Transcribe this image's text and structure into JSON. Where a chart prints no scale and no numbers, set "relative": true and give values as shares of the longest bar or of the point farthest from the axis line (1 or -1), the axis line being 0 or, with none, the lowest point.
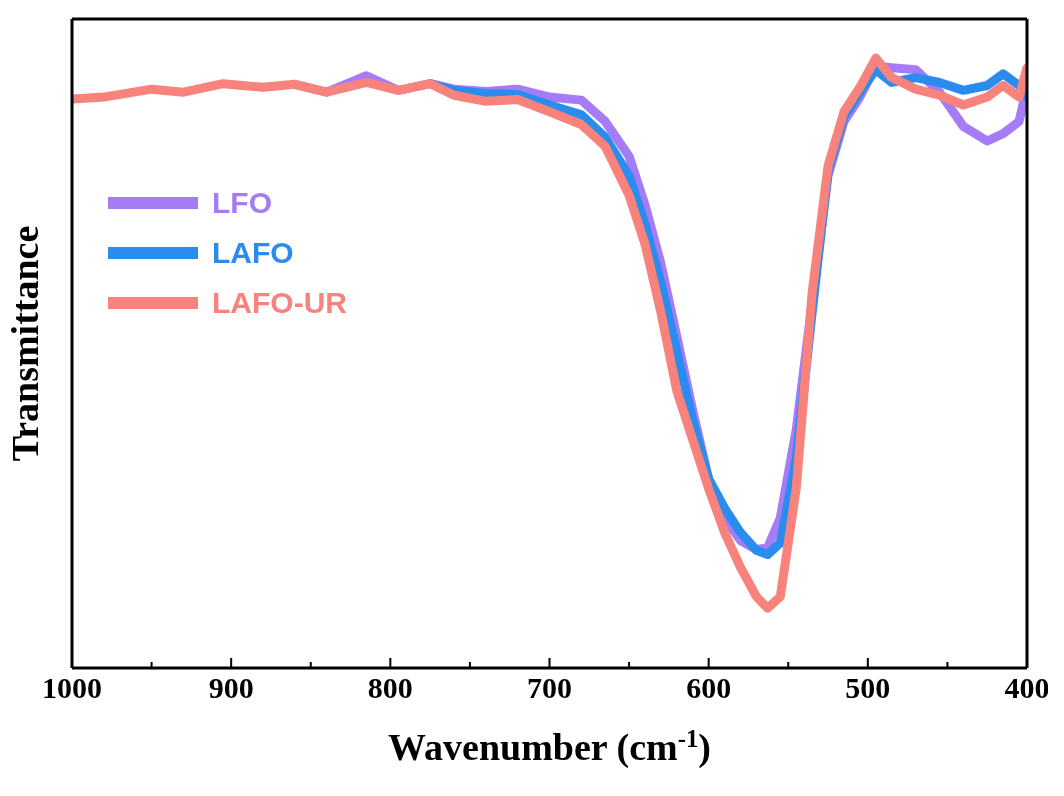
{
  "chart_data": {
    "type": "line",
    "relative": true,
    "xlabel": "Wavenumber (cm$^{-1}$)",
    "ylabel": "Transmittance",
    "x": [
      1000,
      980,
      950,
      930,
      905,
      880,
      860,
      840,
      815,
      795,
      775,
      760,
      740,
      720,
      700,
      680,
      665,
      650,
      640,
      630,
      620,
      610,
      600,
      590,
      580,
      570,
      563,
      555,
      545,
      535,
      525,
      515,
      505,
      495,
      485,
      470,
      455,
      440,
      425,
      415,
      405,
      400
    ],
    "xlim": [
      1000,
      400
    ],
    "xticks": [
      1000,
      {
        "value": 950,
        "label": null
      },
      900,
      {
        "value": 850,
        "label": null
      },
      800,
      {
        "value": 750,
        "label": null
      },
      700,
      {
        "value": 650,
        "label": null
      },
      600,
      {
        "value": 550,
        "label": null
      },
      500,
      {
        "value": 450,
        "label": null
      },
      400
    ],
    "legend": "top left",
    "grid": false,
    "marker": "none",
    "line_style": "solid",
    "series": [
      {
        "name": "LFO",
        "color": "#a57cf5",
        "values": [
          null,
          null,
          null,
          null,
          null,
          null,
          0.957,
          0.944,
          0.971,
          0.947,
          0.958,
          0.949,
          0.945,
          0.949,
          0.936,
          0.931,
          0.896,
          0.839,
          0.759,
          0.663,
          0.543,
          0.422,
          0.31,
          0.246,
          0.209,
          0.194,
          0.197,
          0.246,
          0.39,
          0.599,
          0.807,
          0.896,
          0.936,
          0.987,
          0.984,
          0.981,
          0.944,
          0.888,
          0.864,
          0.876,
          0.896,
          0.952
        ]
      },
      {
        "name": "LAFO",
        "color": "#2b8cf0",
        "values": [
          null,
          null,
          null,
          null,
          null,
          null,
          null,
          null,
          null,
          null,
          0.958,
          0.947,
          0.942,
          0.94,
          0.923,
          0.907,
          0.87,
          0.807,
          0.727,
          0.631,
          0.519,
          0.406,
          0.31,
          0.262,
          0.222,
          0.193,
          0.186,
          0.205,
          0.342,
          0.583,
          0.815,
          0.904,
          0.944,
          0.981,
          0.96,
          0.968,
          0.96,
          0.947,
          0.955,
          0.974,
          0.955,
          0.936
        ]
      },
      {
        "name": "LAFO-UR",
        "color": "#f7837c",
        "values": [
          0.933,
          0.936,
          0.949,
          0.944,
          0.958,
          0.952,
          0.957,
          0.944,
          0.96,
          0.947,
          0.958,
          0.939,
          0.929,
          0.932,
          0.912,
          0.891,
          0.855,
          0.775,
          0.695,
          0.583,
          0.454,
          0.374,
          0.294,
          0.222,
          0.165,
          0.117,
          0.098,
          0.117,
          0.294,
          0.615,
          0.823,
          0.912,
          0.952,
          1.0,
          0.968,
          0.949,
          0.939,
          0.923,
          0.936,
          0.955,
          0.936,
          0.984
        ]
      }
    ]
  }
}
